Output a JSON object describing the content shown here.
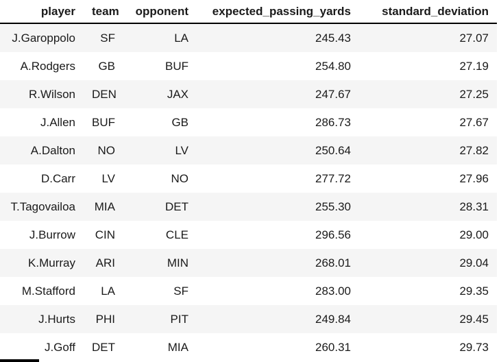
{
  "chart_data": {
    "type": "table",
    "columns": [
      "player",
      "team",
      "opponent",
      "expected_passing_yards",
      "standard_deviation"
    ],
    "rows": [
      [
        "J.Garoppolo",
        "SF",
        "LA",
        "245.43",
        "27.07"
      ],
      [
        "A.Rodgers",
        "GB",
        "BUF",
        "254.80",
        "27.19"
      ],
      [
        "R.Wilson",
        "DEN",
        "JAX",
        "247.67",
        "27.25"
      ],
      [
        "J.Allen",
        "BUF",
        "GB",
        "286.73",
        "27.67"
      ],
      [
        "A.Dalton",
        "NO",
        "LV",
        "250.64",
        "27.82"
      ],
      [
        "D.Carr",
        "LV",
        "NO",
        "277.72",
        "27.96"
      ],
      [
        "T.Tagovailoa",
        "MIA",
        "DET",
        "255.30",
        "28.31"
      ],
      [
        "J.Burrow",
        "CIN",
        "CLE",
        "296.56",
        "29.00"
      ],
      [
        "K.Murray",
        "ARI",
        "MIN",
        "268.01",
        "29.04"
      ],
      [
        "M.Stafford",
        "LA",
        "SF",
        "283.00",
        "29.35"
      ],
      [
        "J.Hurts",
        "PHI",
        "PIT",
        "249.84",
        "29.45"
      ],
      [
        "J.Goff",
        "DET",
        "MIA",
        "260.31",
        "29.73"
      ]
    ],
    "layout": {
      "column_alignment": "right",
      "striped_rows": "odd",
      "grid": "off",
      "header_rule": "bottom"
    },
    "colors": {
      "stripe": "#f5f5f5",
      "row_background": "#ffffff",
      "header_border": "#000000",
      "text": "#1a1a1a",
      "page_background": "#ffffff"
    }
  }
}
